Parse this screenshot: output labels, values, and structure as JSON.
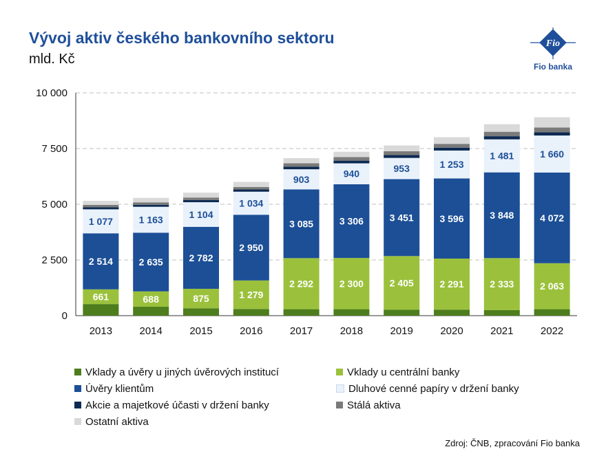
{
  "header": {
    "title": "Vývoj aktiv českého bankovního sektoru",
    "subtitle": "mld. Kč"
  },
  "logo": {
    "mark": "Fio",
    "label": "Fio banka"
  },
  "source": "Zdroj: ČNB, zpracování Fio banka",
  "colors": {
    "vklady_institucie": "#4d7d1c",
    "vklady_cnb": "#9bc13c",
    "uvery": "#1c4f96",
    "dluhopisy": "#e9f1fb",
    "akcie": "#0d2a52",
    "stala": "#7a7a7a",
    "ostatni": "#d9d9d9"
  },
  "chart_data": {
    "type": "bar",
    "stacked": true,
    "categories": [
      "2013",
      "2014",
      "2015",
      "2016",
      "2017",
      "2018",
      "2019",
      "2020",
      "2021",
      "2022"
    ],
    "ylim": [
      0,
      10000
    ],
    "yticks": [
      "0",
      "2 500",
      "5 000",
      "7 500",
      "10 000"
    ],
    "ytick_values": [
      0,
      2500,
      5000,
      7500,
      10000
    ],
    "grid": true,
    "series": [
      {
        "key": "vklady_institucie",
        "name": "Vklady a úvěry u jiných úvěrových institucí",
        "values": [
          520,
          400,
          330,
          300,
          290,
          290,
          270,
          270,
          250,
          290
        ],
        "labels": null
      },
      {
        "key": "vklady_cnb",
        "name": "Vklady u centrální banky",
        "values": [
          661,
          688,
          875,
          1279,
          2292,
          2300,
          2405,
          2291,
          2333,
          2063
        ],
        "labels": [
          "661",
          "688",
          "875",
          "1 279",
          "2 292",
          "2 300",
          "2 405",
          "2 291",
          "2 333",
          "2 063"
        ]
      },
      {
        "key": "uvery",
        "name": "Úvěry klientům",
        "values": [
          2514,
          2635,
          2782,
          2950,
          3085,
          3306,
          3451,
          3596,
          3848,
          4072
        ],
        "labels": [
          "2 514",
          "2 635",
          "2 782",
          "2 950",
          "3 085",
          "3 306",
          "3 451",
          "3 596",
          "3 848",
          "4 072"
        ]
      },
      {
        "key": "dluhopisy",
        "name": "Dluhové cenné papíry v držení banky",
        "values": [
          1077,
          1163,
          1104,
          1034,
          903,
          940,
          953,
          1253,
          1481,
          1660
        ],
        "labels": [
          "1 077",
          "1 163",
          "1 104",
          "1 034",
          "903",
          "940",
          "953",
          "1 253",
          "1 481",
          "1 660"
        ]
      },
      {
        "key": "akcie",
        "name": "Akcie a majetkové účasti v držení banky",
        "values": [
          90,
          90,
          100,
          100,
          120,
          120,
          130,
          130,
          140,
          140
        ],
        "labels": null
      },
      {
        "key": "stala",
        "name": "Stálá aktiva",
        "values": [
          110,
          110,
          110,
          110,
          150,
          160,
          170,
          170,
          200,
          220
        ],
        "labels": null
      },
      {
        "key": "ostatni",
        "name": "Ostatní aktiva",
        "values": [
          180,
          200,
          220,
          230,
          230,
          240,
          260,
          300,
          340,
          460
        ],
        "labels": null
      }
    ]
  }
}
